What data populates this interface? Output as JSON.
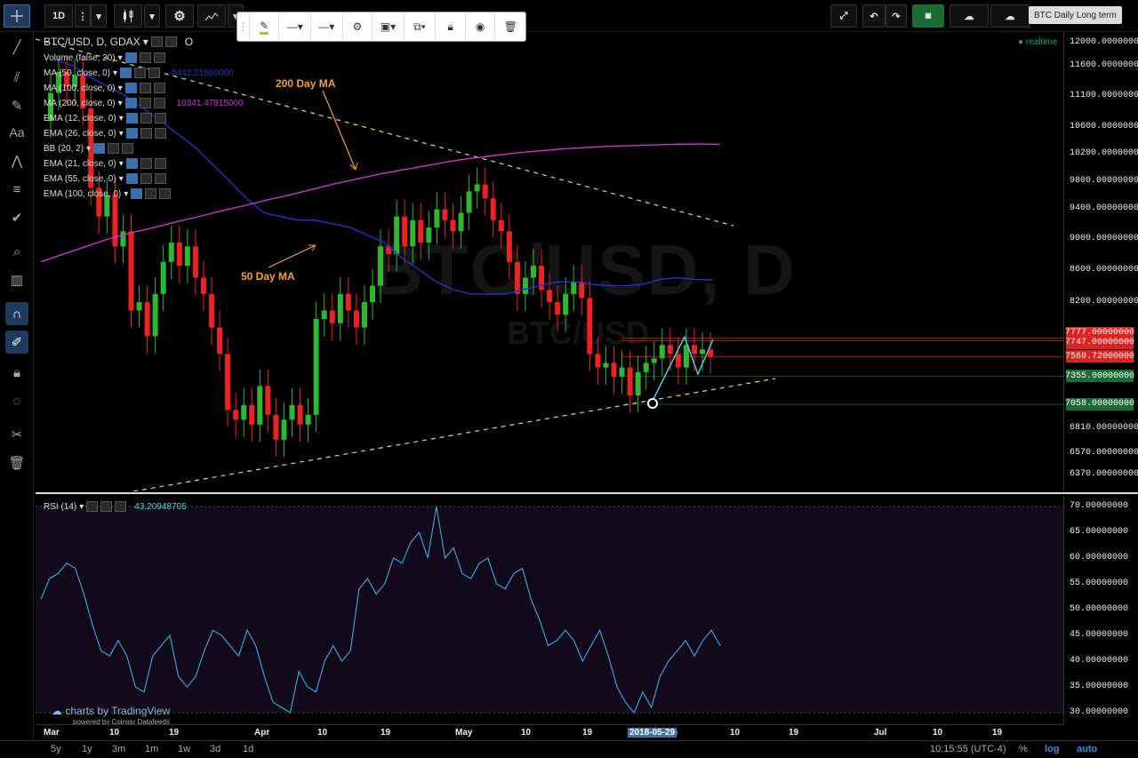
{
  "toolbar": {
    "interval": "1D",
    "chart_title_badge": "BTC Daily Long term"
  },
  "legend": {
    "symbol": "BTC/USD, D, GDAX",
    "ohlc_prefix": "O",
    "realtime": "realtime",
    "indicators": [
      {
        "label": "Volume (false, 20)",
        "value": ""
      },
      {
        "label": "MA (50, close, 0)",
        "value": "8442.21860000",
        "color": "#2233cc"
      },
      {
        "label": "MA (100, close, 0)",
        "value": ""
      },
      {
        "label": "MA (200, close, 0)",
        "value": "10341.47815000",
        "color": "#cc33cc"
      },
      {
        "label": "EMA (12, close, 0)",
        "value": ""
      },
      {
        "label": "EMA (26, close, 0)",
        "value": ""
      },
      {
        "label": "BB (20, 2)",
        "value": ""
      },
      {
        "label": "EMA (21, close, 0)",
        "value": ""
      },
      {
        "label": "EMA (55, close, 0)",
        "value": ""
      },
      {
        "label": "EMA (100, close, 0)",
        "value": ""
      }
    ],
    "rsi_label": "RSI (14)",
    "rsi_value": "43.20948705"
  },
  "watermark": {
    "big": "BTC/USD, D",
    "small": "BTC/USD"
  },
  "annotations": {
    "ma200": "200 Day MA",
    "ma50": "50 Day MA"
  },
  "price_axis": {
    "ticks": [
      "12000.00000000",
      "11600.00000000",
      "11100.00000000",
      "10600.00000000",
      "10200.00000000",
      "9800.00000000",
      "9400.00000000",
      "9000.00000000",
      "8600.00000000",
      "8200.00000000",
      "6810.00000000",
      "6570.00000000",
      "6370.00000000"
    ],
    "tags": [
      {
        "label": "7777.00000000",
        "color": "#d22"
      },
      {
        "label": "7747.00000000",
        "color": "#d22"
      },
      {
        "label": "7569.72000000",
        "color": "#d22"
      },
      {
        "label": "7355.00000000",
        "color": "#1b6b34"
      },
      {
        "label": "7058.00000000",
        "color": "#1b6b34"
      }
    ]
  },
  "rsi_axis": {
    "ticks": [
      "70.00000000",
      "65.00000000",
      "60.00000000",
      "55.00000000",
      "50.00000000",
      "45.00000000",
      "40.00000000",
      "35.00000000",
      "30.00000000"
    ]
  },
  "time_axis": {
    "labels": [
      "Mar",
      "10",
      "19",
      "Apr",
      "10",
      "19",
      "May",
      "10",
      "19",
      "n",
      "10",
      "19",
      "Jul",
      "10",
      "19"
    ],
    "crosshair": "2018-05-29"
  },
  "branding": {
    "logo": "charts by TradingView",
    "sub": "powered by Coinigy Datafeeds"
  },
  "bottom": {
    "ranges": [
      "5y",
      "1y",
      "3m",
      "1m",
      "1w",
      "3d",
      "1d"
    ],
    "clock": "10:15:55 (UTC-4)",
    "percent": "%",
    "log": "log",
    "auto": "auto"
  },
  "chart_data": {
    "type": "candlestick",
    "symbol": "BTC/USD",
    "interval": "D",
    "price_axis_range": [
      6300,
      12100
    ],
    "rsi_axis_range": [
      30,
      70
    ],
    "candles": [
      {
        "o": 10700,
        "c": 11150
      },
      {
        "o": 11150,
        "c": 11500
      },
      {
        "o": 11500,
        "c": 11250
      },
      {
        "o": 11250,
        "c": 11450
      },
      {
        "o": 11450,
        "c": 10900
      },
      {
        "o": 10900,
        "c": 9700
      },
      {
        "o": 9700,
        "c": 9300
      },
      {
        "o": 9300,
        "c": 9600
      },
      {
        "o": 9600,
        "c": 8900
      },
      {
        "o": 8900,
        "c": 9100
      },
      {
        "o": 9100,
        "c": 8100
      },
      {
        "o": 8100,
        "c": 8200
      },
      {
        "o": 8200,
        "c": 7800
      },
      {
        "o": 7800,
        "c": 8300
      },
      {
        "o": 8300,
        "c": 8700
      },
      {
        "o": 8700,
        "c": 8950
      },
      {
        "o": 8950,
        "c": 8650
      },
      {
        "o": 8650,
        "c": 8900
      },
      {
        "o": 8900,
        "c": 8500
      },
      {
        "o": 8500,
        "c": 8300
      },
      {
        "o": 8300,
        "c": 7900
      },
      {
        "o": 7900,
        "c": 7600
      },
      {
        "o": 7600,
        "c": 7000
      },
      {
        "o": 7000,
        "c": 6900
      },
      {
        "o": 6900,
        "c": 7050
      },
      {
        "o": 7050,
        "c": 6850
      },
      {
        "o": 6850,
        "c": 7250
      },
      {
        "o": 7250,
        "c": 6950
      },
      {
        "o": 6950,
        "c": 6700
      },
      {
        "o": 6700,
        "c": 6900
      },
      {
        "o": 6900,
        "c": 7050
      },
      {
        "o": 7050,
        "c": 6850
      },
      {
        "o": 6850,
        "c": 6950
      },
      {
        "o": 6950,
        "c": 8000
      },
      {
        "o": 8000,
        "c": 8100
      },
      {
        "o": 8100,
        "c": 7950
      },
      {
        "o": 7950,
        "c": 8300
      },
      {
        "o": 8300,
        "c": 8100
      },
      {
        "o": 8100,
        "c": 7900
      },
      {
        "o": 7900,
        "c": 8200
      },
      {
        "o": 8200,
        "c": 8400
      },
      {
        "o": 8400,
        "c": 8900
      },
      {
        "o": 8900,
        "c": 8800
      },
      {
        "o": 8800,
        "c": 9300
      },
      {
        "o": 9300,
        "c": 8900
      },
      {
        "o": 8900,
        "c": 9250
      },
      {
        "o": 9250,
        "c": 8950
      },
      {
        "o": 8950,
        "c": 9150
      },
      {
        "o": 9150,
        "c": 9400
      },
      {
        "o": 9400,
        "c": 9250
      },
      {
        "o": 9250,
        "c": 9100
      },
      {
        "o": 9100,
        "c": 9350
      },
      {
        "o": 9350,
        "c": 9650
      },
      {
        "o": 9650,
        "c": 9750
      },
      {
        "o": 9750,
        "c": 9550
      },
      {
        "o": 9550,
        "c": 9250
      },
      {
        "o": 9250,
        "c": 9100
      },
      {
        "o": 9100,
        "c": 8700
      },
      {
        "o": 8700,
        "c": 8300
      },
      {
        "o": 8300,
        "c": 8500
      },
      {
        "o": 8500,
        "c": 8650
      },
      {
        "o": 8650,
        "c": 8350
      },
      {
        "o": 8350,
        "c": 8200
      },
      {
        "o": 8200,
        "c": 8050
      },
      {
        "o": 8050,
        "c": 8300
      },
      {
        "o": 8300,
        "c": 8450
      },
      {
        "o": 8450,
        "c": 8250
      },
      {
        "o": 8250,
        "c": 7600
      },
      {
        "o": 7600,
        "c": 7450
      },
      {
        "o": 7450,
        "c": 7500
      },
      {
        "o": 7500,
        "c": 7350
      },
      {
        "o": 7350,
        "c": 7450
      },
      {
        "o": 7450,
        "c": 7150
      },
      {
        "o": 7150,
        "c": 7400
      },
      {
        "o": 7400,
        "c": 7500
      },
      {
        "o": 7500,
        "c": 7550
      },
      {
        "o": 7550,
        "c": 7700
      },
      {
        "o": 7700,
        "c": 7600
      },
      {
        "o": 7600,
        "c": 7450
      },
      {
        "o": 7450,
        "c": 7700
      },
      {
        "o": 7700,
        "c": 7600
      },
      {
        "o": 7600,
        "c": 7650
      },
      {
        "o": 7650,
        "c": 7570
      }
    ],
    "ma50": [
      11700,
      11600,
      11400,
      11250,
      11100,
      10900,
      10700,
      10500,
      10300,
      10050,
      9800,
      9550,
      9350,
      9300,
      9250,
      9250,
      9200,
      9150,
      9050,
      8950,
      8750,
      8600,
      8450,
      8350,
      8300,
      8300,
      8300,
      8350,
      8400,
      8450,
      8450,
      8420,
      8400,
      8400,
      8420,
      8480,
      8500,
      8480,
      8470
    ],
    "ma200": [
      8700,
      8800,
      8900,
      9000,
      9080,
      9150,
      9230,
      9300,
      9380,
      9450,
      9530,
      9600,
      9680,
      9760,
      9830,
      9900,
      9960,
      10020,
      10080,
      10130,
      10170,
      10210,
      10240,
      10270,
      10290,
      10310,
      10320,
      10330,
      10340,
      10345,
      10340
    ],
    "rsi": [
      52,
      56,
      57,
      59,
      58,
      53,
      47,
      42,
      41,
      44,
      41,
      35,
      34,
      41,
      43,
      45,
      37,
      35,
      37,
      42,
      46,
      45,
      43,
      41,
      46,
      43,
      37,
      32,
      31,
      30,
      38,
      35,
      34,
      40,
      43,
      40,
      42,
      54,
      56,
      53,
      55,
      60,
      59,
      63,
      65,
      60,
      70,
      60,
      62,
      57,
      56,
      59,
      60,
      55,
      54,
      57,
      58,
      52,
      48,
      43,
      44,
      46,
      44,
      40,
      43,
      46,
      41,
      35,
      32,
      30,
      34,
      31,
      37,
      40,
      42,
      44,
      41,
      44,
      46,
      43
    ]
  }
}
